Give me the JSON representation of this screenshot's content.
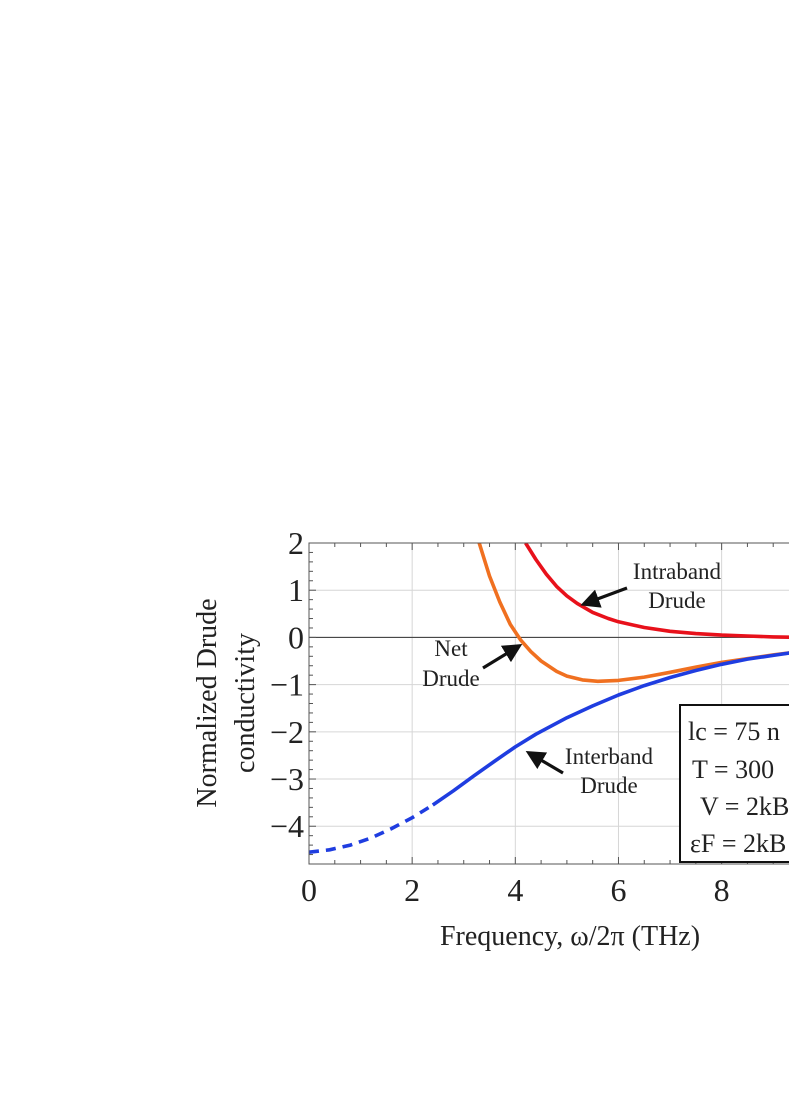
{
  "chart_data": {
    "type": "line",
    "xlabel": "Frequency, ω/2π (THz)",
    "ylabel_lines": [
      "Normalized Drude",
      "conductivity"
    ],
    "xlim": [
      0,
      9.5
    ],
    "ylim": [
      -4.8,
      2
    ],
    "xticks": [
      0,
      2,
      4,
      6,
      8
    ],
    "yticks": [
      2,
      1,
      0,
      -1,
      -2,
      -3,
      -4
    ],
    "xtick_labels": [
      "0",
      "2",
      "4",
      "6",
      "8"
    ],
    "ytick_labels": [
      "2",
      "1",
      "0",
      "−1",
      "−2",
      "−3",
      "−4"
    ],
    "grid": true,
    "series": [
      {
        "name": "Intraband Drude",
        "color": "#e8111b",
        "x": [
          4.2,
          4.4,
          4.6,
          4.8,
          5.0,
          5.2,
          5.5,
          5.8,
          6.0,
          6.5,
          7.0,
          7.5,
          8.0,
          8.5,
          9.0,
          9.5
        ],
        "y": [
          2.0,
          1.65,
          1.34,
          1.08,
          0.88,
          0.72,
          0.53,
          0.4,
          0.33,
          0.21,
          0.13,
          0.08,
          0.05,
          0.03,
          0.01,
          0.0
        ]
      },
      {
        "name": "Net Drude",
        "color": "#f07020",
        "x": [
          3.3,
          3.5,
          3.7,
          3.9,
          4.1,
          4.3,
          4.5,
          4.8,
          5.0,
          5.3,
          5.6,
          6.0,
          6.5,
          7.0,
          7.5,
          8.0,
          8.5,
          9.0,
          9.5
        ],
        "y": [
          2.0,
          1.3,
          0.75,
          0.28,
          -0.05,
          -0.3,
          -0.5,
          -0.72,
          -0.82,
          -0.9,
          -0.93,
          -0.91,
          -0.84,
          -0.74,
          -0.63,
          -0.53,
          -0.45,
          -0.37,
          -0.3
        ]
      },
      {
        "name": "Interband Drude",
        "color": "#1f3de0",
        "dashed_until_x": 2.4,
        "x": [
          0,
          0.4,
          0.8,
          1.2,
          1.6,
          2.0,
          2.4,
          2.8,
          3.2,
          3.6,
          4.0,
          4.4,
          5.0,
          5.5,
          6.0,
          6.5,
          7.0,
          7.5,
          8.0,
          8.5,
          9.0,
          9.5
        ],
        "y": [
          -4.55,
          -4.5,
          -4.4,
          -4.25,
          -4.05,
          -3.82,
          -3.55,
          -3.25,
          -2.93,
          -2.62,
          -2.32,
          -2.05,
          -1.7,
          -1.45,
          -1.22,
          -1.02,
          -0.85,
          -0.7,
          -0.57,
          -0.46,
          -0.38,
          -0.3
        ]
      }
    ],
    "annotations": [
      {
        "lines": [
          "Intraband",
          "Drude"
        ],
        "anchor": "curve-top-right",
        "target": [
          5.3,
          0.75
        ]
      },
      {
        "lines": [
          "Net",
          "Drude"
        ],
        "anchor": "left",
        "target": [
          4.15,
          -0.1
        ]
      },
      {
        "lines": [
          "Interband",
          "Drude"
        ],
        "anchor": "right",
        "target": [
          4.1,
          -2.3
        ]
      }
    ],
    "legend_box": {
      "lines": [
        "lc = 75 n",
        "T = 300",
        "V = 2kB",
        "εF = 2kB"
      ]
    }
  }
}
